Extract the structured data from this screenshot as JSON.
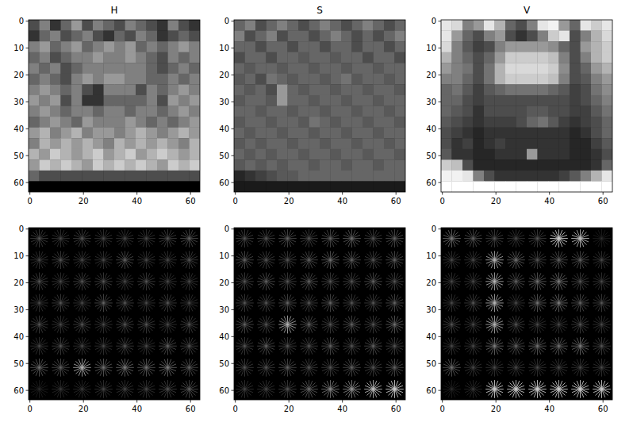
{
  "chart_data": [
    {
      "type": "image",
      "title": "H",
      "xlim": [
        -0.5,
        63.5
      ],
      "ylim": [
        63.5,
        -0.5
      ],
      "xticks": [
        0,
        20,
        40,
        60
      ],
      "yticks": [
        0,
        10,
        20,
        30,
        40,
        50,
        60
      ],
      "cells": [
        [
          0.3,
          0.5,
          0.2,
          0.4,
          0.6,
          0.3,
          0.5,
          0.4,
          0.3,
          0.5,
          0.4,
          0.3,
          0.2,
          0.5,
          0.3,
          0.2
        ],
        [
          0.2,
          0.4,
          0.5,
          0.3,
          0.4,
          0.5,
          0.3,
          0.2,
          0.4,
          0.3,
          0.5,
          0.4,
          0.2,
          0.3,
          0.4,
          0.3
        ],
        [
          0.5,
          0.6,
          0.4,
          0.5,
          0.6,
          0.4,
          0.5,
          0.6,
          0.5,
          0.6,
          0.4,
          0.5,
          0.4,
          0.5,
          0.6,
          0.5
        ],
        [
          0.4,
          0.5,
          0.3,
          0.4,
          0.5,
          0.5,
          0.6,
          0.5,
          0.5,
          0.6,
          0.5,
          0.4,
          0.3,
          0.5,
          0.4,
          0.5
        ],
        [
          0.5,
          0.4,
          0.5,
          0.3,
          0.4,
          0.5,
          0.5,
          0.5,
          0.5,
          0.5,
          0.5,
          0.4,
          0.3,
          0.4,
          0.5,
          0.4
        ],
        [
          0.4,
          0.5,
          0.4,
          0.3,
          0.5,
          0.6,
          0.5,
          0.6,
          0.6,
          0.5,
          0.5,
          0.4,
          0.4,
          0.5,
          0.4,
          0.5
        ],
        [
          0.5,
          0.6,
          0.5,
          0.4,
          0.5,
          0.3,
          0.2,
          0.5,
          0.5,
          0.5,
          0.3,
          0.5,
          0.4,
          0.5,
          0.6,
          0.5
        ],
        [
          0.6,
          0.5,
          0.6,
          0.3,
          0.5,
          0.2,
          0.2,
          0.4,
          0.4,
          0.4,
          0.4,
          0.5,
          0.3,
          0.6,
          0.5,
          0.6
        ],
        [
          0.5,
          0.6,
          0.5,
          0.4,
          0.5,
          0.5,
          0.4,
          0.5,
          0.5,
          0.4,
          0.5,
          0.5,
          0.4,
          0.5,
          0.6,
          0.5
        ],
        [
          0.4,
          0.5,
          0.6,
          0.5,
          0.4,
          0.6,
          0.5,
          0.5,
          0.5,
          0.6,
          0.5,
          0.4,
          0.5,
          0.4,
          0.5,
          0.6
        ],
        [
          0.6,
          0.7,
          0.5,
          0.6,
          0.7,
          0.5,
          0.6,
          0.6,
          0.5,
          0.6,
          0.7,
          0.6,
          0.5,
          0.6,
          0.7,
          0.6
        ],
        [
          0.5,
          0.7,
          0.6,
          0.7,
          0.6,
          0.7,
          0.6,
          0.5,
          0.7,
          0.6,
          0.7,
          0.6,
          0.7,
          0.6,
          0.5,
          0.7
        ],
        [
          0.7,
          0.6,
          0.8,
          0.7,
          0.6,
          0.7,
          0.8,
          0.6,
          0.7,
          0.8,
          0.6,
          0.7,
          0.8,
          0.7,
          0.6,
          0.7
        ],
        [
          0.6,
          0.8,
          0.7,
          0.8,
          0.7,
          0.6,
          0.8,
          0.7,
          0.8,
          0.7,
          0.8,
          0.7,
          0.6,
          0.8,
          0.7,
          0.8
        ],
        [
          0.4,
          0.3,
          0.3,
          0.3,
          0.3,
          0.3,
          0.3,
          0.3,
          0.3,
          0.3,
          0.3,
          0.3,
          0.3,
          0.3,
          0.3,
          0.3
        ],
        [
          0,
          0,
          0,
          0,
          0,
          0,
          0,
          0,
          0,
          0,
          0,
          0,
          0,
          0,
          0,
          0
        ]
      ]
    },
    {
      "type": "image",
      "title": "S",
      "xlim": [
        -0.5,
        63.5
      ],
      "ylim": [
        63.5,
        -0.5
      ],
      "xticks": [
        0,
        20,
        40,
        60
      ],
      "yticks": [
        0,
        10,
        20,
        30,
        40,
        50,
        60
      ],
      "cells": [
        [
          0.4,
          0.5,
          0.3,
          0.4,
          0.5,
          0.4,
          0.3,
          0.4,
          0.5,
          0.4,
          0.3,
          0.4,
          0.5,
          0.4,
          0.3,
          0.4
        ],
        [
          0.5,
          0.3,
          0.4,
          0.5,
          0.3,
          0.4,
          0.4,
          0.3,
          0.4,
          0.5,
          0.4,
          0.3,
          0.4,
          0.3,
          0.4,
          0.5
        ],
        [
          0.4,
          0.4,
          0.3,
          0.4,
          0.4,
          0.3,
          0.4,
          0.4,
          0.3,
          0.4,
          0.4,
          0.3,
          0.4,
          0.4,
          0.3,
          0.4
        ],
        [
          0.3,
          0.4,
          0.4,
          0.3,
          0.4,
          0.4,
          0.35,
          0.4,
          0.4,
          0.35,
          0.4,
          0.4,
          0.3,
          0.4,
          0.4,
          0.3
        ],
        [
          0.4,
          0.35,
          0.4,
          0.4,
          0.35,
          0.4,
          0.4,
          0.35,
          0.4,
          0.4,
          0.35,
          0.4,
          0.4,
          0.35,
          0.4,
          0.4
        ],
        [
          0.35,
          0.4,
          0.3,
          0.45,
          0.4,
          0.35,
          0.4,
          0.4,
          0.35,
          0.4,
          0.45,
          0.35,
          0.4,
          0.4,
          0.35,
          0.4
        ],
        [
          0.4,
          0.35,
          0.4,
          0.3,
          0.6,
          0.4,
          0.35,
          0.4,
          0.4,
          0.35,
          0.4,
          0.4,
          0.35,
          0.4,
          0.4,
          0.35
        ],
        [
          0.35,
          0.4,
          0.4,
          0.35,
          0.6,
          0.4,
          0.4,
          0.35,
          0.4,
          0.4,
          0.35,
          0.4,
          0.4,
          0.35,
          0.4,
          0.4
        ],
        [
          0.4,
          0.4,
          0.35,
          0.4,
          0.4,
          0.35,
          0.4,
          0.4,
          0.35,
          0.4,
          0.4,
          0.35,
          0.4,
          0.4,
          0.35,
          0.4
        ],
        [
          0.35,
          0.4,
          0.4,
          0.35,
          0.4,
          0.4,
          0.35,
          0.45,
          0.4,
          0.35,
          0.4,
          0.4,
          0.35,
          0.4,
          0.4,
          0.35
        ],
        [
          0.4,
          0.35,
          0.4,
          0.4,
          0.35,
          0.4,
          0.4,
          0.35,
          0.4,
          0.4,
          0.35,
          0.4,
          0.4,
          0.35,
          0.4,
          0.4
        ],
        [
          0.35,
          0.4,
          0.35,
          0.4,
          0.4,
          0.35,
          0.4,
          0.4,
          0.35,
          0.4,
          0.4,
          0.35,
          0.4,
          0.4,
          0.35,
          0.4
        ],
        [
          0.4,
          0.35,
          0.4,
          0.35,
          0.4,
          0.4,
          0.35,
          0.4,
          0.4,
          0.35,
          0.4,
          0.4,
          0.35,
          0.4,
          0.4,
          0.35
        ],
        [
          0.35,
          0.4,
          0.35,
          0.4,
          0.35,
          0.4,
          0.4,
          0.35,
          0.4,
          0.4,
          0.35,
          0.4,
          0.4,
          0.35,
          0.4,
          0.4
        ],
        [
          0.15,
          0.2,
          0.25,
          0.3,
          0.35,
          0.35,
          0.4,
          0.4,
          0.4,
          0.4,
          0.4,
          0.4,
          0.4,
          0.4,
          0.4,
          0.4
        ],
        [
          0.1,
          0.1,
          0.1,
          0.1,
          0.1,
          0.1,
          0.1,
          0.1,
          0.1,
          0.1,
          0.1,
          0.1,
          0.1,
          0.1,
          0.1,
          0.1
        ]
      ]
    },
    {
      "type": "image",
      "title": "V",
      "xlim": [
        -0.5,
        63.5
      ],
      "ylim": [
        63.5,
        -0.5
      ],
      "xticks": [
        0,
        20,
        40,
        60
      ],
      "yticks": [
        0,
        10,
        20,
        30,
        40,
        50,
        60
      ],
      "cells": [
        [
          0.9,
          0.85,
          0.5,
          0.6,
          0.9,
          0.7,
          0.4,
          0.3,
          0.5,
          0.9,
          0.95,
          0.6,
          0.4,
          0.9,
          0.8,
          0.9
        ],
        [
          0.9,
          0.6,
          0.4,
          0.3,
          0.5,
          0.6,
          0.3,
          0.2,
          0.3,
          0.5,
          0.8,
          0.9,
          0.3,
          0.5,
          0.7,
          0.85
        ],
        [
          0.85,
          0.5,
          0.35,
          0.25,
          0.3,
          0.5,
          0.6,
          0.6,
          0.6,
          0.6,
          0.55,
          0.4,
          0.3,
          0.6,
          0.7,
          0.8
        ],
        [
          0.7,
          0.5,
          0.4,
          0.3,
          0.4,
          0.6,
          0.8,
          0.8,
          0.8,
          0.8,
          0.75,
          0.5,
          0.3,
          0.5,
          0.7,
          0.8
        ],
        [
          0.6,
          0.5,
          0.45,
          0.3,
          0.45,
          0.7,
          0.85,
          0.85,
          0.85,
          0.85,
          0.8,
          0.55,
          0.3,
          0.4,
          0.6,
          0.7
        ],
        [
          0.5,
          0.5,
          0.4,
          0.3,
          0.45,
          0.7,
          0.8,
          0.8,
          0.8,
          0.8,
          0.75,
          0.5,
          0.3,
          0.35,
          0.5,
          0.6
        ],
        [
          0.4,
          0.45,
          0.35,
          0.25,
          0.35,
          0.4,
          0.45,
          0.45,
          0.45,
          0.45,
          0.4,
          0.35,
          0.25,
          0.3,
          0.45,
          0.55
        ],
        [
          0.4,
          0.4,
          0.3,
          0.25,
          0.3,
          0.3,
          0.3,
          0.3,
          0.3,
          0.3,
          0.3,
          0.3,
          0.25,
          0.3,
          0.4,
          0.5
        ],
        [
          0.4,
          0.35,
          0.3,
          0.2,
          0.3,
          0.3,
          0.3,
          0.3,
          0.35,
          0.35,
          0.3,
          0.3,
          0.25,
          0.25,
          0.35,
          0.45
        ],
        [
          0.35,
          0.3,
          0.25,
          0.2,
          0.25,
          0.25,
          0.25,
          0.3,
          0.4,
          0.45,
          0.35,
          0.25,
          0.2,
          0.25,
          0.3,
          0.4
        ],
        [
          0.3,
          0.25,
          0.2,
          0.15,
          0.2,
          0.2,
          0.2,
          0.2,
          0.2,
          0.2,
          0.2,
          0.2,
          0.15,
          0.2,
          0.3,
          0.4
        ],
        [
          0.3,
          0.2,
          0.25,
          0.15,
          0.2,
          0.25,
          0.2,
          0.2,
          0.2,
          0.2,
          0.2,
          0.2,
          0.15,
          0.15,
          0.25,
          0.35
        ],
        [
          0.35,
          0.2,
          0.2,
          0.15,
          0.15,
          0.2,
          0.2,
          0.2,
          0.6,
          0.2,
          0.2,
          0.2,
          0.15,
          0.15,
          0.2,
          0.3
        ],
        [
          0.8,
          0.75,
          0.3,
          0.15,
          0.15,
          0.15,
          0.15,
          0.15,
          0.15,
          0.15,
          0.15,
          0.15,
          0.15,
          0.15,
          0.2,
          0.4
        ],
        [
          0.95,
          0.95,
          0.9,
          0.5,
          0.3,
          0.2,
          0.2,
          0.2,
          0.2,
          0.2,
          0.2,
          0.25,
          0.35,
          0.5,
          0.7,
          0.9
        ],
        [
          1,
          1,
          1,
          1,
          1,
          1,
          1,
          1,
          1,
          1,
          1,
          1,
          1,
          1,
          1,
          1
        ]
      ]
    },
    {
      "type": "hog",
      "xlim": [
        -0.5,
        63.5
      ],
      "ylim": [
        63.5,
        -0.5
      ],
      "xticks": [
        0,
        20,
        40,
        60
      ],
      "yticks": [
        0,
        10,
        20,
        30,
        40,
        50,
        60
      ],
      "cells": [
        [
          0.35,
          0.3,
          0.35,
          0.3,
          0.3,
          0.3,
          0.35,
          0.4
        ],
        [
          0.3,
          0.35,
          0.3,
          0.3,
          0.4,
          0.3,
          0.3,
          0.35
        ],
        [
          0.35,
          0.3,
          0.35,
          0.35,
          0.3,
          0.35,
          0.3,
          0.3
        ],
        [
          0.3,
          0.35,
          0.3,
          0.4,
          0.35,
          0.3,
          0.35,
          0.3
        ],
        [
          0.35,
          0.3,
          0.35,
          0.3,
          0.35,
          0.35,
          0.3,
          0.35
        ],
        [
          0.3,
          0.35,
          0.3,
          0.3,
          0.35,
          0.3,
          0.4,
          0.35
        ],
        [
          0.45,
          0.4,
          0.7,
          0.45,
          0.5,
          0.45,
          0.5,
          0.4
        ],
        [
          0.2,
          0.25,
          0.25,
          0.3,
          0.3,
          0.3,
          0.35,
          0.4
        ]
      ]
    },
    {
      "type": "hog",
      "xlim": [
        -0.5,
        63.5
      ],
      "ylim": [
        63.5,
        -0.5
      ],
      "xticks": [
        0,
        20,
        40,
        60
      ],
      "yticks": [
        0,
        10,
        20,
        30,
        40,
        50,
        60
      ],
      "cells": [
        [
          0.35,
          0.35,
          0.4,
          0.35,
          0.4,
          0.45,
          0.35,
          0.4
        ],
        [
          0.4,
          0.35,
          0.35,
          0.4,
          0.45,
          0.4,
          0.35,
          0.4
        ],
        [
          0.35,
          0.4,
          0.35,
          0.4,
          0.35,
          0.35,
          0.4,
          0.35
        ],
        [
          0.35,
          0.35,
          0.4,
          0.35,
          0.4,
          0.35,
          0.35,
          0.4
        ],
        [
          0.4,
          0.35,
          0.7,
          0.4,
          0.35,
          0.4,
          0.35,
          0.45
        ],
        [
          0.35,
          0.4,
          0.35,
          0.35,
          0.4,
          0.35,
          0.4,
          0.35
        ],
        [
          0.35,
          0.35,
          0.4,
          0.35,
          0.35,
          0.4,
          0.35,
          0.4
        ],
        [
          0.3,
          0.3,
          0.35,
          0.45,
          0.55,
          0.6,
          0.75,
          0.8
        ]
      ]
    },
    {
      "type": "hog",
      "xlim": [
        -0.5,
        63.5
      ],
      "ylim": [
        63.5,
        -0.5
      ],
      "xticks": [
        0,
        20,
        40,
        60
      ],
      "yticks": [
        0,
        10,
        20,
        30,
        40,
        50,
        60
      ],
      "cells": [
        [
          0.5,
          0.4,
          0.35,
          0.3,
          0.35,
          0.8,
          0.75,
          0.2
        ],
        [
          0.3,
          0.3,
          0.7,
          0.45,
          0.35,
          0.4,
          0.4,
          0.3
        ],
        [
          0.3,
          0.3,
          0.7,
          0.4,
          0.45,
          0.5,
          0.35,
          0.3
        ],
        [
          0.3,
          0.35,
          0.7,
          0.3,
          0.45,
          0.5,
          0.4,
          0.35
        ],
        [
          0.35,
          0.3,
          0.7,
          0.35,
          0.3,
          0.3,
          0.35,
          0.3
        ],
        [
          0.3,
          0.3,
          0.5,
          0.4,
          0.45,
          0.45,
          0.5,
          0.35
        ],
        [
          0.45,
          0.3,
          0.3,
          0.3,
          0.3,
          0.3,
          0.3,
          0.3
        ],
        [
          0.2,
          0.25,
          0.8,
          0.8,
          0.8,
          0.8,
          0.8,
          0.8
        ]
      ]
    }
  ]
}
